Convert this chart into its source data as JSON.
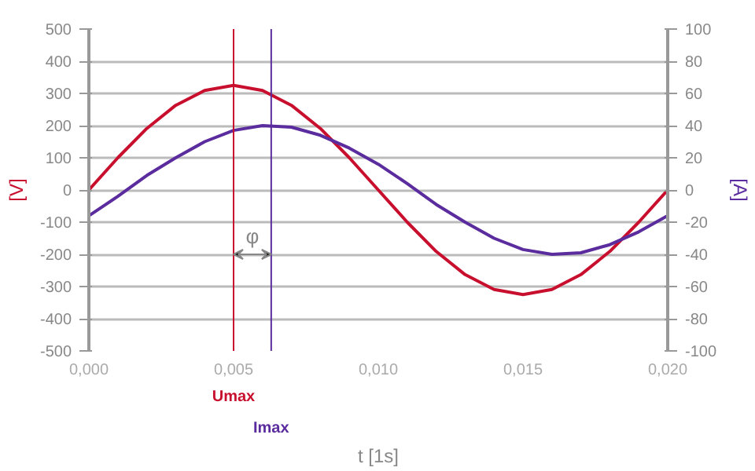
{
  "chart_data": {
    "type": "line",
    "xlabel": "t [1s]",
    "ylabel": "[V]",
    "y2label": "[A]",
    "x": [
      0,
      0.001,
      0.002,
      0.003,
      0.004,
      0.005,
      0.006,
      0.007,
      0.008,
      0.009,
      0.01,
      0.011,
      0.012,
      0.013,
      0.014,
      0.015,
      0.016,
      0.017,
      0.018,
      0.019,
      0.02
    ],
    "series": [
      {
        "color": "#c8102e",
        "values": [
          0,
          100,
          191,
          263,
          309,
          325,
          309,
          263,
          191,
          100,
          0,
          -100,
          -191,
          -263,
          -309,
          -325,
          -309,
          -263,
          -191,
          -100,
          0
        ]
      },
      {
        "color": "#5b2c9e",
        "axis": "y2",
        "values": [
          -16,
          -4,
          9,
          20,
          30,
          37,
          40,
          39,
          34,
          26,
          16,
          4,
          -9,
          -20,
          -30,
          -37,
          -40,
          -39,
          -34,
          -26,
          -16
        ]
      }
    ],
    "xlim": [
      0,
      0.02
    ],
    "xticks": [
      {
        "value": 0,
        "label": "0,000"
      },
      {
        "value": 0.005,
        "label": "0,005"
      },
      {
        "value": 0.01,
        "label": "0,010"
      },
      {
        "value": 0.015,
        "label": "0,015"
      },
      {
        "value": 0.02,
        "label": "0,020"
      }
    ],
    "ylim": [
      -500,
      500
    ],
    "yticks": [
      -500,
      -400,
      -300,
      -200,
      -100,
      0,
      100,
      200,
      300,
      400,
      500
    ],
    "y2lim": [
      -100,
      100
    ],
    "y2ticks": [
      -100,
      -80,
      -60,
      -40,
      -20,
      0,
      20,
      40,
      60,
      80,
      100
    ],
    "ref_lines": [
      {
        "axis": "x",
        "value": 0.005,
        "label": "Umax",
        "color": "#c8102e"
      },
      {
        "axis": "x",
        "value": 0.0063,
        "label": "Imax",
        "color": "#5b2c9e"
      }
    ],
    "annotations": [
      "φ"
    ],
    "grid": "y",
    "line_style": "solid"
  }
}
